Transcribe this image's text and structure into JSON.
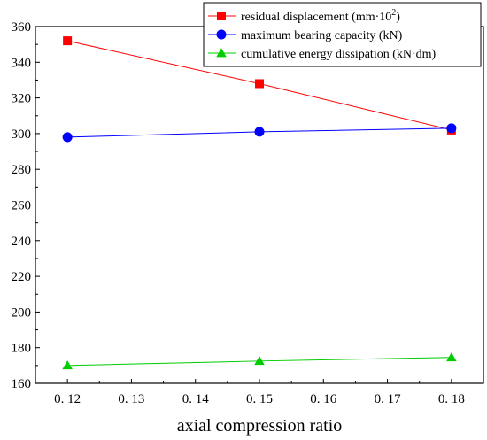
{
  "chart_data": {
    "type": "line",
    "title": "",
    "xlabel": "axial compression ratio",
    "ylabel": "",
    "xlim": [
      0.115,
      0.185
    ],
    "ylim": [
      160,
      360
    ],
    "x_ticks": [
      {
        "value": 0.12,
        "label": "0. 12"
      },
      {
        "value": 0.13,
        "label": "0. 13"
      },
      {
        "value": 0.14,
        "label": "0. 14"
      },
      {
        "value": 0.15,
        "label": "0. 15"
      },
      {
        "value": 0.16,
        "label": "0. 16"
      },
      {
        "value": 0.17,
        "label": "0. 17"
      },
      {
        "value": 0.18,
        "label": "0. 18"
      }
    ],
    "y_ticks": [
      160,
      180,
      200,
      220,
      240,
      260,
      280,
      300,
      320,
      340,
      360
    ],
    "legend_position": "top-right",
    "x": [
      0.12,
      0.15,
      0.18
    ],
    "series": [
      {
        "name": "residual displacement (mm·10",
        "name_sup": "2",
        "name_tail": ")",
        "values": [
          352,
          328,
          302
        ],
        "color": "#ff0000",
        "marker": "square"
      },
      {
        "name": "maximum bearing capacity (kN)",
        "values": [
          298,
          301,
          303
        ],
        "color": "#0000ff",
        "marker": "circle"
      },
      {
        "name": "cumulative energy dissipation (kN·dm)",
        "values": [
          170,
          172.5,
          174.5
        ],
        "color": "#00cc00",
        "marker": "triangle"
      }
    ]
  }
}
